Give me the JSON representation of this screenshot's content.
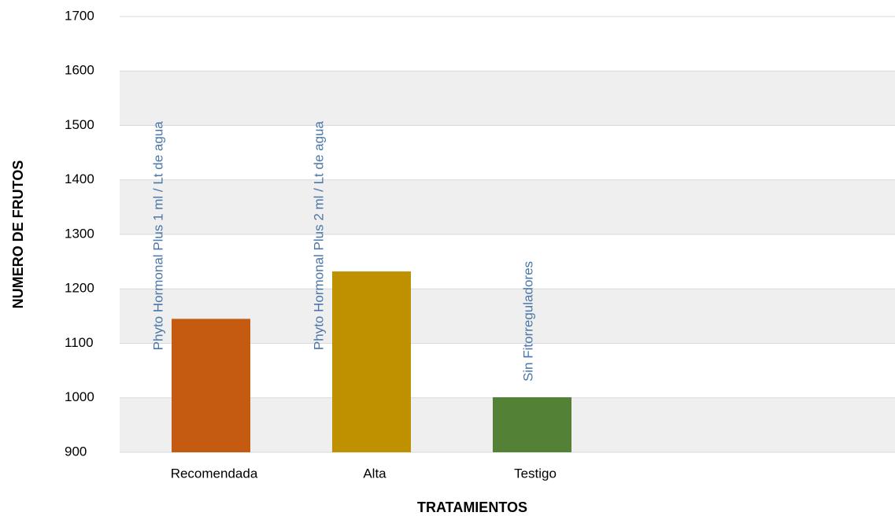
{
  "chart_data": {
    "type": "bar",
    "categories": [
      "Recomendada",
      "Alta",
      "Testigo"
    ],
    "values": [
      1145,
      1232,
      1001
    ],
    "colors": [
      "#c55a11",
      "#bf9000",
      "#538135"
    ],
    "annotations": [
      "Phyto Hormonal Plus 1 ml / Lt de agua",
      "Phyto Hormonal Plus 2 ml / Lt de agua",
      "Sin Fitorreguladores"
    ],
    "x_label": "TRATAMIENTOS",
    "y_label": "NUMERO DE FRUTOS",
    "ylim": [
      900,
      1700
    ],
    "yticks": [
      900,
      1000,
      1100,
      1200,
      1300,
      1400,
      1500,
      1600,
      1700
    ],
    "grid": true
  }
}
